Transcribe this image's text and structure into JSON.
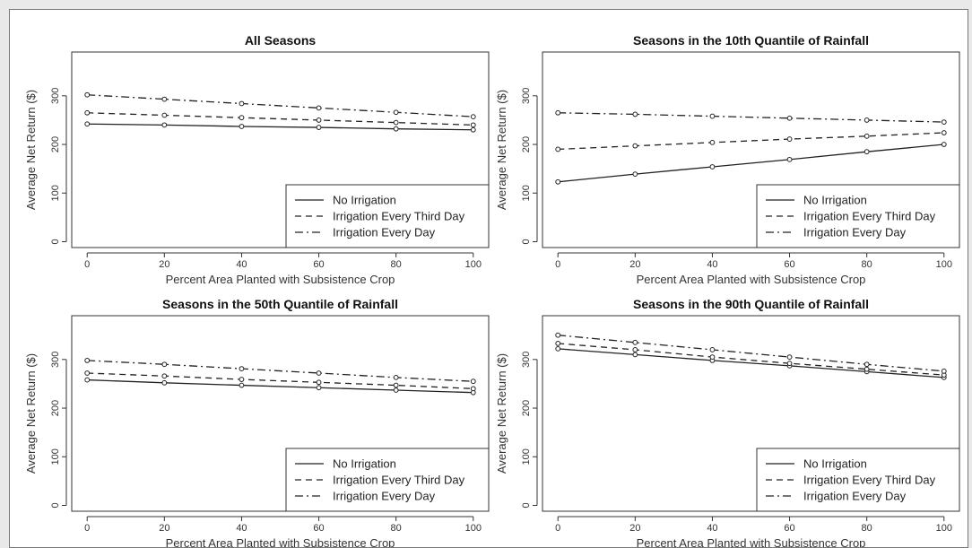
{
  "chart_data": [
    {
      "type": "line",
      "title": "All Seasons",
      "xlabel": "Percent Area Planted with Subsistence Crop",
      "ylabel": "Average Net Return ($)",
      "x": [
        0,
        20,
        40,
        60,
        80,
        100
      ],
      "xticks": [
        0,
        20,
        40,
        60,
        80,
        100
      ],
      "yticks": [
        0,
        100,
        200,
        300
      ],
      "ylim": [
        0,
        390
      ],
      "legend_position": "bottom-right",
      "series": [
        {
          "name": "No Irrigation",
          "style": "solid",
          "values": [
            242,
            240,
            237,
            235,
            232,
            230
          ]
        },
        {
          "name": "Irrigation Every Third Day",
          "style": "dashed",
          "values": [
            265,
            260,
            255,
            250,
            245,
            240
          ]
        },
        {
          "name": "Irrigation Every Day",
          "style": "dotdash",
          "values": [
            302,
            293,
            284,
            275,
            266,
            257
          ]
        }
      ]
    },
    {
      "type": "line",
      "title": "Seasons in the 10th Quantile of Rainfall",
      "xlabel": "Percent Area Planted with Subsistence Crop",
      "ylabel": "Average Net Return ($)",
      "x": [
        0,
        20,
        40,
        60,
        80,
        100
      ],
      "xticks": [
        0,
        20,
        40,
        60,
        80,
        100
      ],
      "yticks": [
        0,
        100,
        200,
        300
      ],
      "ylim": [
        0,
        390
      ],
      "legend_position": "bottom-right",
      "series": [
        {
          "name": "No Irrigation",
          "style": "solid",
          "values": [
            123,
            139,
            154,
            169,
            185,
            200
          ]
        },
        {
          "name": "Irrigation Every Third Day",
          "style": "dashed",
          "values": [
            190,
            197,
            204,
            211,
            217,
            224
          ]
        },
        {
          "name": "Irrigation Every Day",
          "style": "dotdash",
          "values": [
            265,
            262,
            258,
            254,
            250,
            246
          ]
        }
      ]
    },
    {
      "type": "line",
      "title": "Seasons in the 50th Quantile of Rainfall",
      "xlabel": "Percent Area Planted with Subsistence Crop",
      "ylabel": "Average Net Return ($)",
      "x": [
        0,
        20,
        40,
        60,
        80,
        100
      ],
      "xticks": [
        0,
        20,
        40,
        60,
        80,
        100
      ],
      "yticks": [
        0,
        100,
        200,
        300
      ],
      "ylim": [
        0,
        390
      ],
      "legend_position": "bottom-right",
      "series": [
        {
          "name": "No Irrigation",
          "style": "solid",
          "values": [
            258,
            252,
            247,
            242,
            237,
            232
          ]
        },
        {
          "name": "Irrigation Every Third Day",
          "style": "dashed",
          "values": [
            272,
            266,
            259,
            253,
            247,
            240
          ]
        },
        {
          "name": "Irrigation Every Day",
          "style": "dotdash",
          "values": [
            298,
            290,
            281,
            272,
            263,
            255
          ]
        }
      ]
    },
    {
      "type": "line",
      "title": "Seasons in the 90th Quantile of Rainfall",
      "xlabel": "Percent Area Planted with Subsistence Crop",
      "ylabel": "Average Net Return ($)",
      "x": [
        0,
        20,
        40,
        60,
        80,
        100
      ],
      "xticks": [
        0,
        20,
        40,
        60,
        80,
        100
      ],
      "yticks": [
        0,
        100,
        200,
        300
      ],
      "ylim": [
        0,
        390
      ],
      "legend_position": "bottom-right",
      "series": [
        {
          "name": "No Irrigation",
          "style": "solid",
          "values": [
            322,
            310,
            298,
            287,
            275,
            263
          ]
        },
        {
          "name": "Irrigation Every Third Day",
          "style": "dashed",
          "values": [
            333,
            320,
            305,
            292,
            280,
            268
          ]
        },
        {
          "name": "Irrigation Every Day",
          "style": "dotdash",
          "values": [
            350,
            335,
            320,
            305,
            290,
            276
          ]
        }
      ]
    }
  ]
}
